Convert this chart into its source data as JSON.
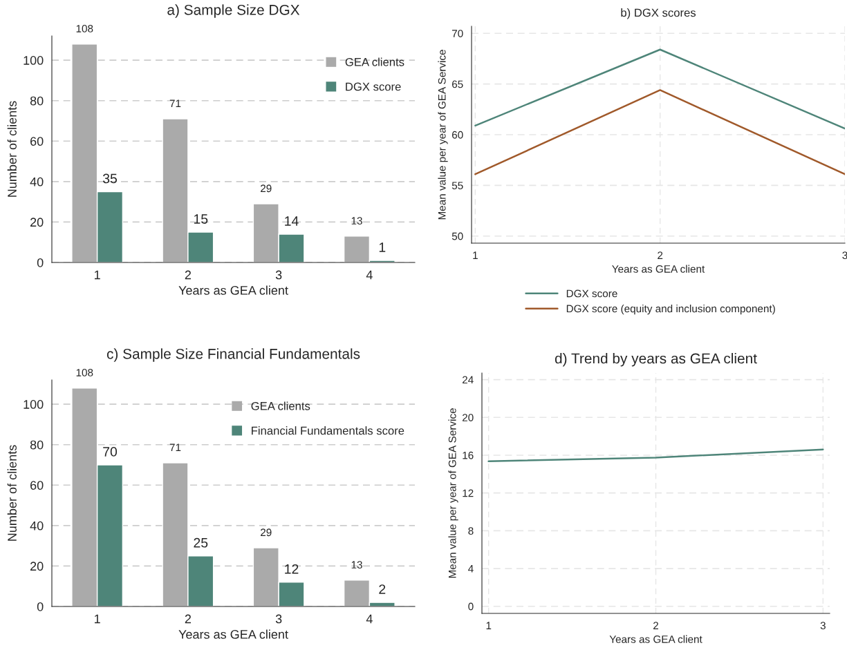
{
  "chart_data": [
    {
      "type": "bar",
      "title": "a) Sample Size DGX",
      "xlabel": "Years as GEA client",
      "ylabel": "Number of clients",
      "categories": [
        "1",
        "2",
        "3",
        "4"
      ],
      "series": [
        {
          "name": "GEA clients",
          "color": "#aaaaaa",
          "values": [
            108,
            71,
            29,
            13
          ]
        },
        {
          "name": "DGX score",
          "color": "#4e8579",
          "values": [
            35,
            15,
            14,
            1
          ]
        }
      ],
      "ylim": [
        0,
        112
      ],
      "yticks": [
        0,
        20,
        40,
        60,
        80,
        100
      ],
      "grid": "y",
      "legend": "top right",
      "data_labels": true
    },
    {
      "type": "line",
      "title": "b) DGX scores",
      "xlabel": "Years as GEA client",
      "ylabel": "Mean value per year of GEA Service",
      "x": [
        1,
        2,
        3
      ],
      "series": [
        {
          "name": "DGX score",
          "color": "#4e8579",
          "values": [
            60.9,
            68.4,
            60.6
          ]
        },
        {
          "name": "DGX score (equity and inclusion component)",
          "color": "#a0592a",
          "values": [
            56.1,
            64.4,
            56.1
          ]
        }
      ],
      "xlim": [
        0.98,
        3.0
      ],
      "xticks": [
        1,
        2,
        3
      ],
      "ylim": [
        49.3,
        70.7
      ],
      "yticks": [
        50,
        55,
        60,
        65,
        70
      ],
      "grid": true,
      "legend": "bottom"
    },
    {
      "type": "bar",
      "title": "c) Sample Size Financial Fundamentals",
      "xlabel": "Years as GEA client",
      "ylabel": "Number of clients",
      "categories": [
        "1",
        "2",
        "3",
        "4"
      ],
      "series": [
        {
          "name": "GEA clients",
          "color": "#aaaaaa",
          "values": [
            108,
            71,
            29,
            13
          ]
        },
        {
          "name": "Financial Fundamentals score",
          "color": "#4e8579",
          "values": [
            70,
            25,
            12,
            2
          ]
        }
      ],
      "ylim": [
        0,
        112
      ],
      "yticks": [
        0,
        20,
        40,
        60,
        80,
        100
      ],
      "grid": "y",
      "legend": "top right",
      "data_labels": true
    },
    {
      "type": "line",
      "title": "d) Trend by years as GEA client",
      "xlabel": "Years as GEA client",
      "ylabel": "Mean value per year of GEA Service",
      "x": [
        1,
        2,
        3
      ],
      "series": [
        {
          "color": "#4e8579",
          "values": [
            15.35,
            15.75,
            16.6
          ]
        }
      ],
      "xlim": [
        0.96,
        3.04
      ],
      "xticks": [
        1,
        2,
        3
      ],
      "ylim": [
        -0.75,
        24.7
      ],
      "yticks": [
        0,
        4,
        8,
        12,
        16,
        20,
        24
      ],
      "grid": true
    }
  ]
}
